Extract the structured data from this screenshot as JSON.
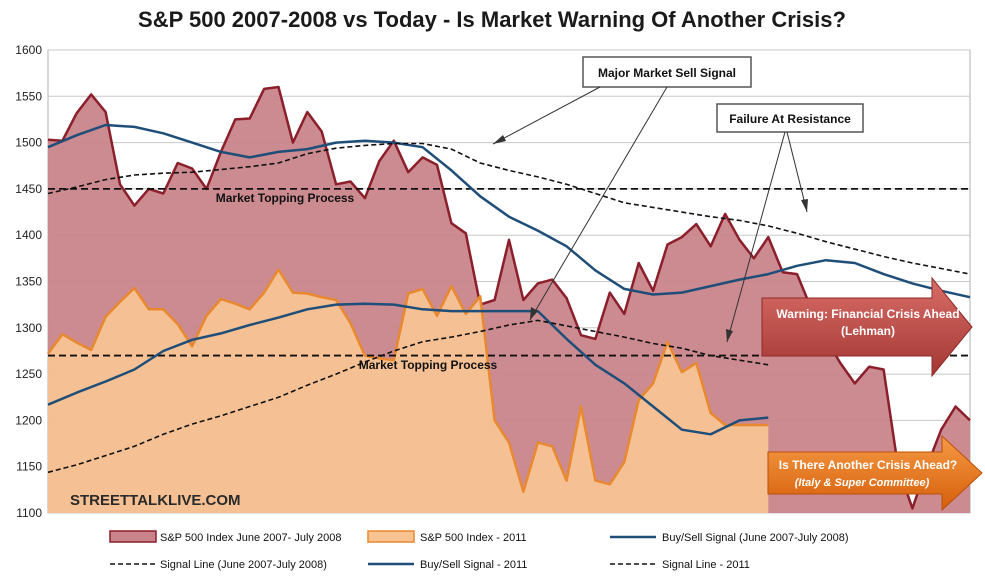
{
  "chart_data": {
    "type": "area",
    "title": "S&P 500 2007-2008 vs Today - Is Market Warning Of Another Crisis?",
    "xlabel": "",
    "ylabel": "",
    "ylim": [
      1100,
      1600
    ],
    "yticks": [
      1100,
      1150,
      1200,
      1250,
      1300,
      1350,
      1400,
      1450,
      1500,
      1550,
      1600
    ],
    "grid": true,
    "legend_position": "bottom",
    "series": [
      {
        "name": "S&P 500 Index June 2007- July 2008",
        "kind": "area",
        "color": "#c9848b",
        "stroke": "#8b1f2b",
        "x": [
          0,
          1,
          2,
          3,
          4,
          5,
          6,
          7,
          8,
          9,
          10,
          11,
          12,
          13,
          14,
          15,
          16,
          17,
          18,
          19,
          20,
          21,
          22,
          23,
          24,
          25,
          26,
          27,
          28,
          29,
          30,
          31,
          32,
          33,
          34,
          35,
          36,
          37,
          38,
          39,
          40,
          41,
          42,
          43,
          44,
          45,
          46,
          47,
          48,
          49,
          50,
          51,
          52,
          53,
          54,
          55,
          56,
          57,
          58,
          59,
          60,
          61,
          62,
          63,
          64
        ],
        "values": [
          1503,
          1502,
          1532,
          1552,
          1533,
          1455,
          1432,
          1450,
          1445,
          1478,
          1472,
          1450,
          1490,
          1525,
          1526,
          1558,
          1560,
          1500,
          1533,
          1512,
          1455,
          1458,
          1440,
          1480,
          1502,
          1468,
          1484,
          1476,
          1413,
          1402,
          1325,
          1330,
          1395,
          1330,
          1348,
          1352,
          1332,
          1292,
          1288,
          1338,
          1315,
          1370,
          1340,
          1390,
          1398,
          1412,
          1388,
          1423,
          1395,
          1375,
          1398,
          1360,
          1358,
          1320,
          1288,
          1262,
          1240,
          1258,
          1255,
          1150,
          1105,
          1150,
          1190,
          1215,
          1200
        ]
      },
      {
        "name": "S&P 500 Index - 2011",
        "kind": "area",
        "color": "#f7c393",
        "stroke": "#e8892f",
        "x": [
          0,
          1,
          2,
          3,
          4,
          5,
          6,
          7,
          8,
          9,
          10,
          11,
          12,
          13,
          14,
          15,
          16,
          17,
          18,
          19,
          20,
          21,
          22,
          23,
          24,
          25,
          26,
          27,
          28,
          29,
          30,
          31,
          32,
          33,
          34,
          35,
          36,
          37,
          38,
          39,
          40,
          41,
          42,
          43,
          44,
          45,
          46,
          47,
          48,
          49,
          50
        ],
        "values": [
          1272,
          1293,
          1284,
          1276,
          1312,
          1328,
          1343,
          1320,
          1320,
          1304,
          1280,
          1313,
          1331,
          1326,
          1320,
          1338,
          1363,
          1338,
          1337,
          1333,
          1330,
          1305,
          1270,
          1267,
          1265,
          1337,
          1342,
          1313,
          1345,
          1315,
          1334,
          1200,
          1176,
          1123,
          1176,
          1172,
          1135,
          1215,
          1135,
          1131,
          1155,
          1222,
          1240,
          1285,
          1252,
          1262,
          1208,
          1195,
          1195,
          1195,
          1195
        ]
      },
      {
        "name": "Buy/Sell Signal (June 2007-July 2008)",
        "kind": "line",
        "color": "#1f4e79",
        "x": [
          0,
          2,
          4,
          6,
          8,
          10,
          12,
          14,
          16,
          18,
          20,
          22,
          24,
          26,
          28,
          30,
          32,
          34,
          36,
          38,
          40,
          42,
          44,
          46,
          48,
          50,
          52,
          54,
          56,
          58,
          60,
          62,
          64
        ],
        "values": [
          1495,
          1508,
          1519,
          1517,
          1510,
          1500,
          1490,
          1484,
          1490,
          1493,
          1500,
          1502,
          1500,
          1495,
          1470,
          1442,
          1420,
          1405,
          1388,
          1362,
          1342,
          1336,
          1338,
          1345,
          1352,
          1358,
          1367,
          1373,
          1370,
          1358,
          1348,
          1340,
          1333
        ]
      },
      {
        "name": "Signal Line (June 2007-July 2008)",
        "kind": "dashed",
        "color": "#111111",
        "x": [
          0,
          2,
          4,
          6,
          8,
          10,
          12,
          14,
          16,
          18,
          20,
          22,
          24,
          26,
          28,
          30,
          32,
          34,
          36,
          38,
          40,
          42,
          44,
          46,
          48,
          50,
          52,
          54,
          56,
          58,
          60,
          62,
          64
        ],
        "values": [
          1445,
          1452,
          1460,
          1465,
          1467,
          1468,
          1471,
          1474,
          1478,
          1488,
          1494,
          1497,
          1499,
          1499,
          1493,
          1478,
          1470,
          1463,
          1455,
          1445,
          1435,
          1430,
          1425,
          1420,
          1416,
          1410,
          1402,
          1393,
          1385,
          1377,
          1370,
          1364,
          1358
        ]
      },
      {
        "name": "Buy/Sell Signal - 2011",
        "kind": "line",
        "color": "#1f4e79",
        "x": [
          0,
          2,
          4,
          6,
          8,
          10,
          12,
          14,
          16,
          18,
          20,
          22,
          24,
          26,
          28,
          30,
          32,
          34,
          36,
          38,
          40,
          42,
          44,
          46,
          48,
          50
        ],
        "values": [
          1217,
          1230,
          1242,
          1255,
          1275,
          1287,
          1294,
          1303,
          1311,
          1320,
          1325,
          1326,
          1325,
          1320,
          1318,
          1318,
          1318,
          1318,
          1288,
          1260,
          1240,
          1215,
          1190,
          1185,
          1200,
          1203
        ]
      },
      {
        "name": "Signal Line - 2011",
        "kind": "dashed",
        "color": "#111111",
        "x": [
          0,
          2,
          4,
          6,
          8,
          10,
          12,
          14,
          16,
          18,
          20,
          22,
          24,
          26,
          28,
          30,
          32,
          34,
          36,
          38,
          40,
          42,
          44,
          46,
          48,
          50
        ],
        "values": [
          1144,
          1152,
          1162,
          1172,
          1185,
          1196,
          1205,
          1215,
          1225,
          1238,
          1250,
          1263,
          1275,
          1285,
          1290,
          1296,
          1303,
          1308,
          1302,
          1296,
          1290,
          1283,
          1278,
          1270,
          1265,
          1260
        ]
      }
    ],
    "reference_lines": [
      {
        "label": "Market Topping Process",
        "y": 1450
      },
      {
        "label": "Market Topping Process",
        "y": 1270
      }
    ],
    "annotations": [
      {
        "label": "Major Market Sell Signal"
      },
      {
        "label": "Failure At Resistance"
      }
    ],
    "callouts": [
      {
        "line1": "Warning: Financial Crisis Ahead",
        "line2": "(Lehman)",
        "color": "#c0504d"
      },
      {
        "line1": "Is There Another Crisis Ahead?",
        "line2": "(Italy & Super  Committee)",
        "color": "#e36c0a"
      }
    ],
    "watermark": "STREETTALKLIVE.COM"
  }
}
